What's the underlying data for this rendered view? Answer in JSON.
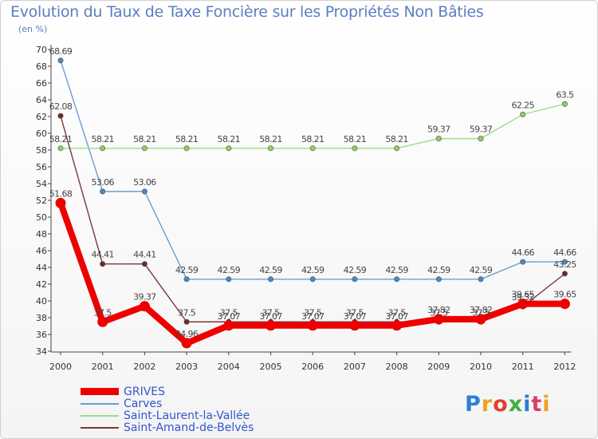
{
  "header": {
    "title": "Evolution du Taux de Taxe Foncière sur les Propriétés Non Bâties",
    "unit": "(en %)"
  },
  "brand": {
    "name": "Proxiti"
  },
  "chart_data": {
    "type": "line",
    "title": "Evolution du Taux de Taxe Foncière sur les Propriétés Non Bâties",
    "ylabel": "(en %)",
    "xlabel": "",
    "ylim": [
      34,
      70
    ],
    "yticks": [
      34,
      36,
      38,
      40,
      42,
      44,
      46,
      48,
      50,
      52,
      54,
      56,
      58,
      60,
      62,
      64,
      66,
      68,
      70
    ],
    "grid": false,
    "legend_position": "bottom-left",
    "categories": [
      "2000",
      "2001",
      "2002",
      "2003",
      "2004",
      "2005",
      "2006",
      "2007",
      "2008",
      "2009",
      "2010",
      "2011",
      "2012"
    ],
    "series": [
      {
        "name": "Carves",
        "color": "#6a9fd1",
        "marker": "#4a87c8",
        "values": [
          68.69,
          53.06,
          53.06,
          42.59,
          42.59,
          42.59,
          42.59,
          42.59,
          42.59,
          42.59,
          42.59,
          44.66,
          44.66
        ],
        "labels": [
          "68.69",
          "53.06",
          "53.06",
          "42.59",
          "42.59",
          "42.59",
          "42.59",
          "42.59",
          "42.59",
          "42.59",
          "42.59",
          "44.66",
          "44.66"
        ]
      },
      {
        "name": "Saint-Laurent-la-Vallée",
        "color": "#9fd98a",
        "marker": "#8fd05a",
        "values": [
          58.21,
          58.21,
          58.21,
          58.21,
          58.21,
          58.21,
          58.21,
          58.21,
          58.21,
          59.37,
          59.37,
          62.25,
          63.5
        ],
        "labels": [
          "58.21",
          "58.21",
          "58.21",
          "58.21",
          "58.21",
          "58.21",
          "58.21",
          "58.21",
          "58.21",
          "59.37",
          "59.37",
          "62.25",
          "63.5"
        ]
      },
      {
        "name": "Saint-Amand-de-Belvès",
        "color": "#7a3838",
        "marker": "#6e2a2a",
        "values": [
          62.08,
          44.41,
          44.41,
          37.5,
          37.5,
          37.5,
          37.5,
          37.5,
          37.5,
          37.5,
          37.5,
          39.32,
          43.25
        ],
        "labels": [
          "62.08",
          "44.41",
          "44.41",
          "37.5",
          "37.5",
          "37.5",
          "37.5",
          "37.5",
          "37.5",
          "37.5",
          "37.5",
          "39.32",
          "43.25"
        ]
      },
      {
        "name": "GRIVES",
        "color": "#ee0000",
        "marker": "#ee0000",
        "values": [
          51.68,
          37.5,
          39.37,
          34.96,
          37.07,
          37.07,
          37.07,
          37.07,
          37.07,
          37.82,
          37.82,
          39.65,
          39.65
        ],
        "labels": [
          "51.68",
          "37.5",
          "39.37",
          "34.96",
          "37.07",
          "37.07",
          "37.07",
          "37.07",
          "37.07",
          "37.82",
          "37.82",
          "39.65",
          "39.65"
        ]
      }
    ]
  }
}
